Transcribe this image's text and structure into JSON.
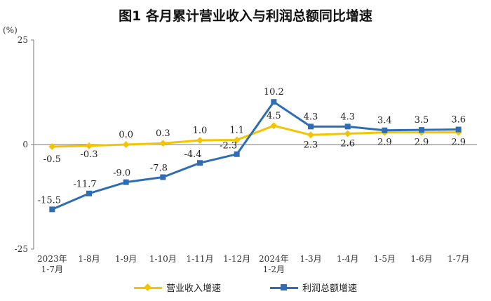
{
  "title": "图1  各月累计营业收入与利润总额同比增速",
  "chart_data": {
    "type": "line",
    "y_unit": "(%)",
    "ylim": [
      -25,
      25
    ],
    "y_ticks": [
      "25",
      "0",
      "-25"
    ],
    "categories": [
      "2023年\n1-7月",
      "1-8月",
      "1-9月",
      "1-10月",
      "1-11月",
      "1-12月",
      "2024年\n1-2月",
      "1-3月",
      "1-4月",
      "1-5月",
      "1-6月",
      "1-7月"
    ],
    "series": [
      {
        "name": "营业收入增速",
        "color": "#f5c400",
        "marker": "diamond",
        "values": [
          -0.5,
          -0.3,
          0.0,
          0.3,
          1.0,
          1.1,
          4.5,
          2.3,
          2.6,
          2.9,
          2.9,
          2.9
        ],
        "labels": [
          "-0.5",
          "-0.3",
          "0.0",
          "0.3",
          "1.0",
          "1.1",
          "4.5",
          "2.3",
          "2.6",
          "2.9",
          "2.9",
          "2.9"
        ]
      },
      {
        "name": "利润总额增速",
        "color": "#2e6db4",
        "marker": "square",
        "values": [
          -15.5,
          -11.7,
          -9.0,
          -7.8,
          -4.4,
          -2.3,
          10.2,
          4.3,
          4.3,
          3.4,
          3.5,
          3.6
        ],
        "labels": [
          "-15.5",
          "-11.7",
          "-9.0",
          "-7.8",
          "-4.4",
          "-2.3",
          "10.2",
          "4.3",
          "4.3",
          "3.4",
          "3.5",
          "3.6"
        ]
      }
    ],
    "legend_position": "bottom",
    "grid": false
  }
}
